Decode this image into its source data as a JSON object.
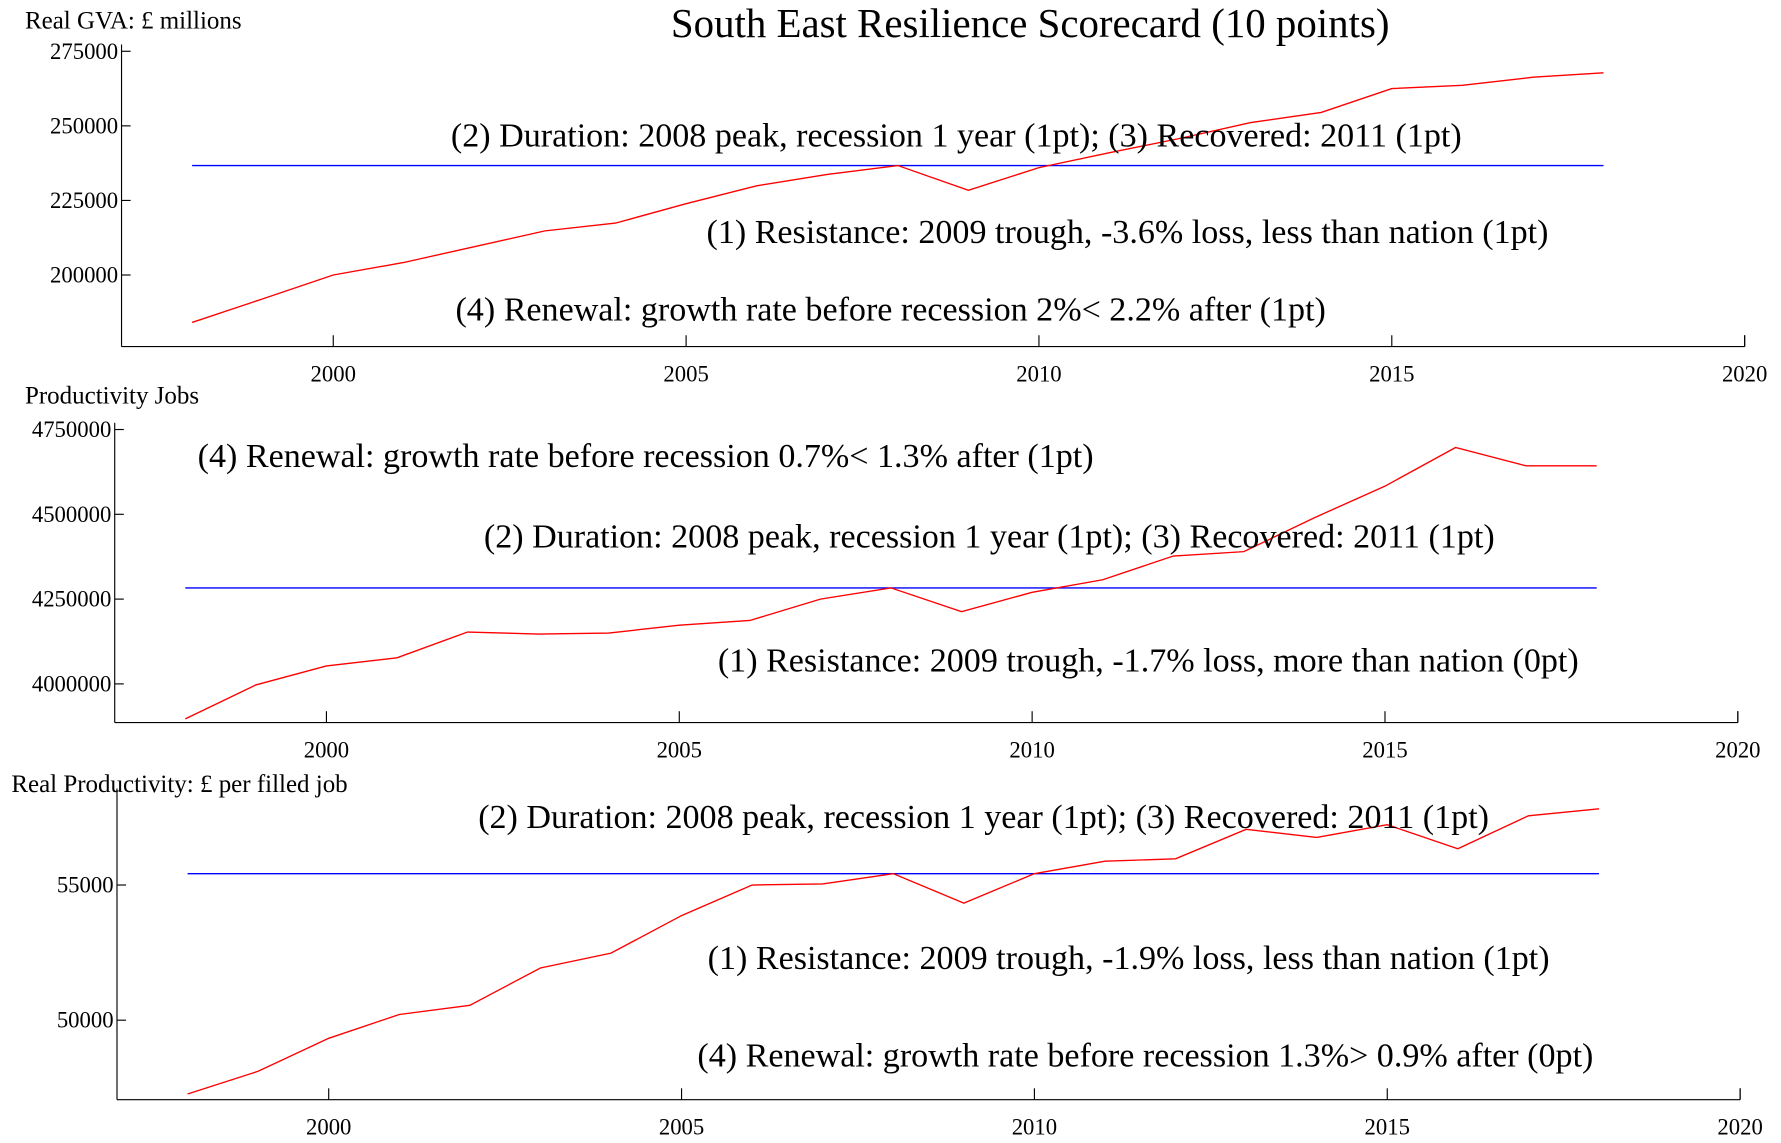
{
  "title": "South East Resilience Scorecard (10 points)",
  "chart_data": [
    {
      "type": "line",
      "ylabel": "Real GVA: £ millions",
      "x": [
        1998,
        1999,
        2000,
        2001,
        2002,
        2003,
        2004,
        2005,
        2006,
        2007,
        2008,
        2009,
        2010,
        2011,
        2012,
        2013,
        2014,
        2015,
        2016,
        2017,
        2018
      ],
      "series": [
        {
          "color": "#ff0000",
          "values": [
            184100,
            192000,
            200000,
            204200,
            209500,
            214800,
            217400,
            223900,
            229900,
            233700,
            236700,
            228400,
            236000,
            241000,
            245800,
            251100,
            254500,
            262500,
            263600,
            266300,
            267800
          ]
        }
      ],
      "peak_line": {
        "value": 236700,
        "from": 1998,
        "to": 2018,
        "color": "#0000ff"
      },
      "xlim": [
        1997,
        2020
      ],
      "xticks": [
        2000,
        2005,
        2010,
        2015,
        2020
      ],
      "ylim": [
        176000,
        275000
      ],
      "yticks": [
        200000,
        225000,
        250000,
        275000
      ],
      "annotations": [
        "(2) Duration: 2008 peak, recession 1 year (1pt); (3) Recovered: 2011 (1pt)",
        "(1) Resistance: 2009 trough, -3.6% loss, less than nation (1pt)",
        "(4) Renewal: growth rate before recession 2%< 2.2% after (1pt)"
      ]
    },
    {
      "type": "line",
      "ylabel": "Productivity Jobs",
      "x": [
        1998,
        1999,
        2000,
        2001,
        2002,
        2003,
        2004,
        2005,
        2006,
        2007,
        2008,
        2009,
        2010,
        2011,
        2012,
        2013,
        2014,
        2015,
        2016,
        2017,
        2018
      ],
      "series": [
        {
          "color": "#ff0000",
          "values": [
            3897000,
            3997000,
            4053000,
            4077000,
            4153000,
            4147000,
            4150000,
            4173000,
            4187000,
            4250000,
            4283000,
            4213000,
            4270000,
            4307000,
            4377000,
            4390000,
            4490000,
            4583000,
            4697000,
            4643000,
            4643000
          ]
        }
      ],
      "peak_line": {
        "value": 4283000,
        "from": 1998,
        "to": 2018,
        "color": "#0000ff"
      },
      "xlim": [
        1997,
        2020
      ],
      "xticks": [
        2000,
        2005,
        2010,
        2015,
        2020
      ],
      "ylim": [
        3886000,
        4750000
      ],
      "yticks": [
        4000000,
        4250000,
        4500000,
        4750000
      ],
      "annotations": [
        "(4) Renewal: growth rate before recession 0.7%< 1.3% after (1pt)",
        "(2) Duration: 2008 peak, recession 1 year (1pt); (3) Recovered: 2011 (1pt)",
        "(1) Resistance: 2009 trough, -1.7% loss, more than nation (0pt)"
      ]
    },
    {
      "type": "line",
      "ylabel": "Real Productivity: £ per filled job",
      "x": [
        1998,
        1999,
        2000,
        2001,
        2002,
        2003,
        2004,
        2005,
        2006,
        2007,
        2008,
        2009,
        2010,
        2011,
        2012,
        2013,
        2014,
        2015,
        2016,
        2017,
        2018
      ],
      "series": [
        {
          "color": "#ff0000",
          "values": [
            47270,
            48110,
            49330,
            50210,
            50550,
            51930,
            52480,
            53870,
            55000,
            55040,
            55420,
            54330,
            55420,
            55880,
            55970,
            57060,
            56760,
            57230,
            56340,
            57560,
            57820
          ]
        }
      ],
      "peak_line": {
        "value": 55420,
        "from": 1998,
        "to": 2018,
        "color": "#0000ff"
      },
      "xlim": [
        1997,
        2020
      ],
      "xticks": [
        2000,
        2005,
        2010,
        2015,
        2020
      ],
      "ylim": [
        47060,
        58320
      ],
      "yticks": [
        50000,
        55000
      ],
      "annotations": [
        "(2) Duration: 2008 peak, recession 1 year (1pt); (3) Recovered: 2011 (1pt)",
        "(1) Resistance: 2009 trough, -1.9% loss, less than nation (1pt)",
        "(4) Renewal: growth rate before recession 1.3%> 0.9% after (0pt)"
      ]
    }
  ]
}
